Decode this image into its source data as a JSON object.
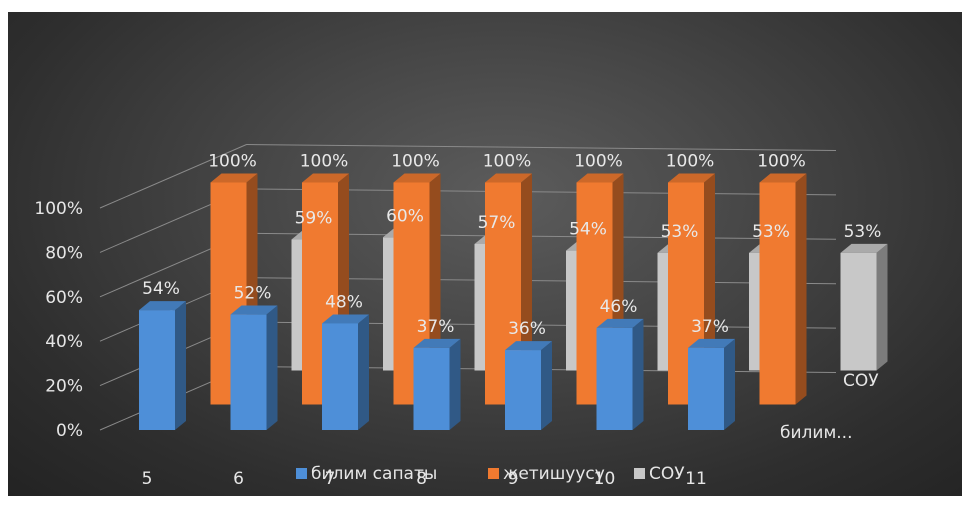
{
  "chart_data": {
    "type": "bar",
    "subtype": "3d-clustered-column",
    "categories": [
      "5",
      "6",
      "7",
      "8",
      "9",
      "10",
      "11"
    ],
    "series": [
      {
        "name": "билим сапаты",
        "values": [
          54,
          52,
          48,
          37,
          36,
          46,
          37
        ],
        "labels": [
          "54%",
          "52%",
          "48%",
          "37%",
          "36%",
          "46%",
          "37%"
        ],
        "color": "#4e8fd8"
      },
      {
        "name": "жетишуусу",
        "values": [
          100,
          100,
          100,
          100,
          100,
          100,
          100
        ],
        "labels": [
          "100%",
          "100%",
          "100%",
          "100%",
          "100%",
          "100%",
          "100%"
        ],
        "color": "#f07a30"
      },
      {
        "name": "СОУ",
        "values": [
          59,
          60,
          57,
          54,
          53,
          53,
          53
        ],
        "labels": [
          "59%",
          "60%",
          "57%",
          "54%",
          "53%",
          "53%",
          "53%"
        ],
        "color": "#c8c8c8"
      }
    ],
    "y_ticks": [
      "0%",
      "20%",
      "40%",
      "60%",
      "80%",
      "100%"
    ],
    "ylim": [
      0,
      100
    ],
    "depth_labels": [
      "билим...",
      "СОУ"
    ],
    "legend": {
      "position": "bottom",
      "items": [
        "билим сапаты",
        "жетишуусу",
        "СОУ"
      ]
    },
    "grid": true
  }
}
